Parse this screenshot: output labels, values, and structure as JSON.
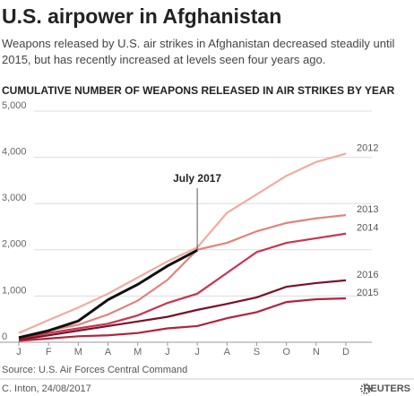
{
  "chart_data": {
    "type": "line",
    "title": "U.S. airpower in Afghanistan",
    "subtitle": "Weapons released by U.S. air strikes in Afghanistan decreased steadily until 2015, but has recently increased at levels seen four years ago.",
    "chart_title": "CUMULATIVE NUMBER OF WEAPONS RELEASED IN AIR STRIKES BY YEAR",
    "annotation": "July 2017",
    "source": "Source: U.S. Air Forces Central Command",
    "credit": "C. Inton, 24/08/2017",
    "brand": "REUTERS",
    "categories": [
      "J",
      "F",
      "M",
      "A",
      "M",
      "J",
      "J",
      "A",
      "S",
      "O",
      "N",
      "D"
    ],
    "ylim": [
      0,
      5000
    ],
    "yticks": [
      0,
      {
        "value": 1000,
        "label": "1,000"
      },
      {
        "value": 2000,
        "label": "2,000"
      },
      {
        "value": 3000,
        "label": "3,000"
      },
      {
        "value": 4000,
        "label": "4,000"
      },
      {
        "value": 5000,
        "label": "5,000"
      }
    ],
    "grid": true,
    "series": [
      {
        "name": "2012",
        "color": "#f2aaa2",
        "values": [
          200,
          480,
          750,
          1050,
          1400,
          1750,
          2050,
          2800,
          3200,
          3600,
          3900,
          4080
        ]
      },
      {
        "name": "2013",
        "color": "#e2827d",
        "values": [
          100,
          250,
          380,
          600,
          900,
          1350,
          2000,
          2150,
          2400,
          2580,
          2680,
          2750
        ]
      },
      {
        "name": "2014",
        "color": "#c8344d",
        "values": [
          80,
          200,
          300,
          400,
          580,
          850,
          1050,
          1500,
          1950,
          2150,
          2250,
          2350
        ]
      },
      {
        "name": "2016",
        "color": "#7a1027",
        "values": [
          50,
          150,
          250,
          350,
          450,
          550,
          700,
          830,
          970,
          1200,
          1280,
          1340
        ]
      },
      {
        "name": "2015",
        "color": "#b0243d",
        "values": [
          30,
          80,
          130,
          150,
          200,
          300,
          350,
          520,
          650,
          870,
          930,
          950
        ]
      },
      {
        "name": "2017",
        "color": "#111111",
        "values": [
          100,
          250,
          460,
          920,
          1250,
          1650,
          1990,
          null,
          null,
          null,
          null,
          null
        ]
      }
    ]
  }
}
